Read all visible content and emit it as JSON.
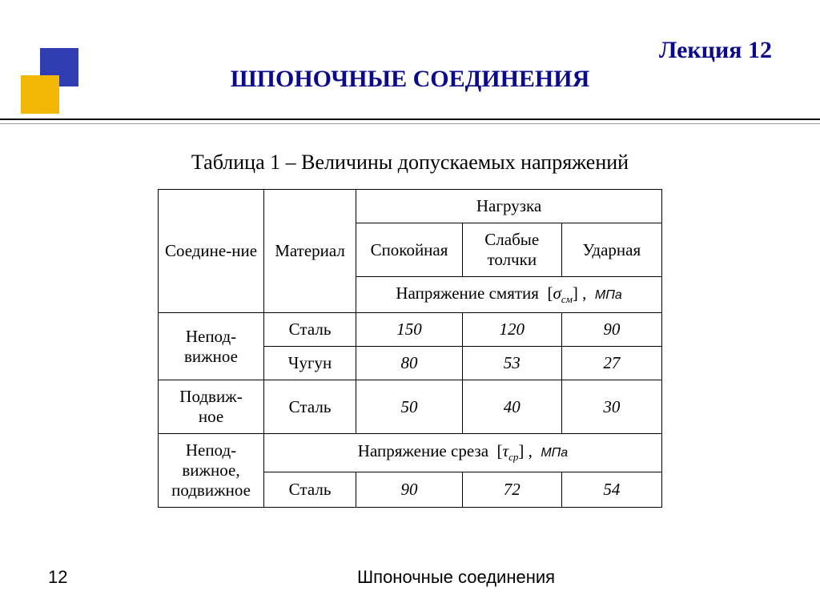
{
  "lecture_label": "Лекция 12",
  "title": "ШПОНОЧНЫЕ СОЕДИНЕНИЯ",
  "table_caption": "Таблица 1 – Величины допускаемых напряжений",
  "colors": {
    "heading": "#0a0a8a",
    "logo_blue": "#2e3db0",
    "logo_yellow": "#f2b705",
    "border": "#000000",
    "text": "#000000",
    "background": "#ffffff"
  },
  "header": {
    "connection": "Соедине-ние",
    "material": "Материал",
    "load": "Нагрузка",
    "calm": "Спокойная",
    "weak_shocks_l1": "Слабые",
    "weak_shocks_l2": "толчки",
    "impact": "Ударная",
    "crush_prefix": "Напряжение смятия ",
    "crush_sym": "σ",
    "crush_sub": "см",
    "crush_unit": "МПа",
    "shear_prefix": "Напряжение среза ",
    "shear_sym": "τ",
    "shear_sub": "ср",
    "shear_unit": "МПа"
  },
  "rows": {
    "fixed_l1": "Непод-",
    "fixed_l2": "вижное",
    "movable_l1": "Подвиж-",
    "movable_l2": "ное",
    "both_l1": "Непод-",
    "both_l2": "вижное,",
    "both_l3": "подвижное",
    "steel": "Сталь",
    "iron": "Чугун"
  },
  "values": {
    "fixed_steel": [
      "150",
      "120",
      "90"
    ],
    "fixed_iron": [
      "80",
      "53",
      "27"
    ],
    "movable_steel": [
      "50",
      "40",
      "30"
    ],
    "shear_steel": [
      "90",
      "72",
      "54"
    ]
  },
  "footer": {
    "page": "12",
    "text": "Шпоночные соединения"
  }
}
